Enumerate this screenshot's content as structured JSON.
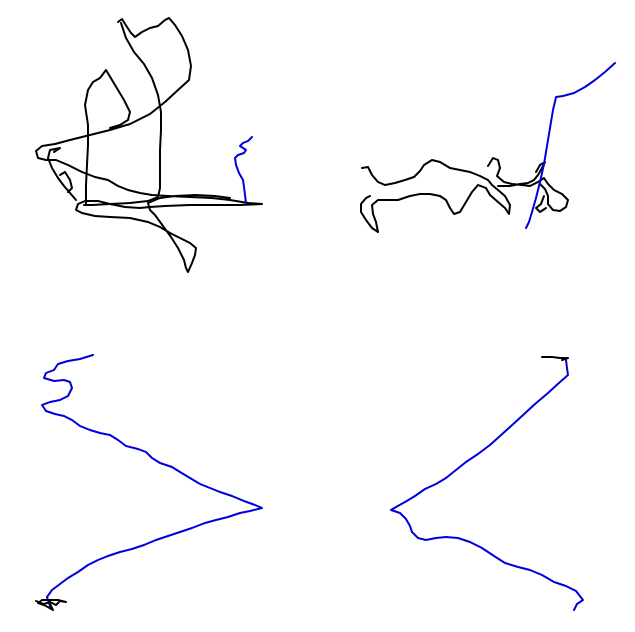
{
  "canvas": {
    "background": "#ffffff"
  },
  "colors": {
    "black_stroke": "#000000",
    "blue_stroke": "#0000dd"
  },
  "panels": [
    {
      "id": "panel-top-left",
      "strokes": [
        "black",
        "blue"
      ]
    },
    {
      "id": "panel-top-right",
      "strokes": [
        "black",
        "blue"
      ]
    },
    {
      "id": "panel-bottom-left",
      "strokes": [
        "blue",
        "black"
      ]
    },
    {
      "id": "panel-bottom-right",
      "strokes": [
        "blue",
        "black"
      ]
    }
  ]
}
